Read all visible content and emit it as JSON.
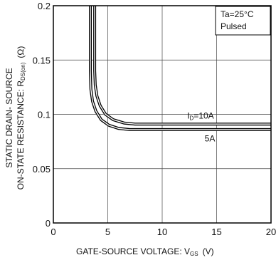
{
  "chart_data": {
    "type": "line",
    "xlabel": "GATE-SOURCE  VOLTAGE: V",
    "xlabel_sub": "GS",
    "xlabel_unit": "(V)",
    "ylabel_line1": "STATIC  DRAIN- SOURCE",
    "ylabel_line2": "ON-STATE  RESISTANCE: R",
    "ylabel_sub": "DS(on)",
    "ylabel_unit": "(Ω)",
    "xlim": [
      0,
      20
    ],
    "ylim": [
      0,
      0.2
    ],
    "x_ticks": [
      "0",
      "5",
      "10",
      "15",
      "20"
    ],
    "y_ticks": [
      "0",
      "0.05",
      "0.1",
      "0.15",
      "0.2"
    ],
    "grid": true,
    "legend_box": {
      "line1": "Ta=25°C",
      "line2": "Pulsed",
      "placement": "top-right"
    },
    "series": [
      {
        "name": "ID=10A",
        "label_main": "I",
        "label_sub": "D",
        "label_rest": "=10A",
        "x": [
          3.8,
          3.8,
          3.85,
          4.0,
          4.3,
          4.8,
          5.5,
          6.5,
          7.5,
          10,
          15,
          20
        ],
        "y": [
          0.2,
          0.14,
          0.127,
          0.117,
          0.108,
          0.1,
          0.095,
          0.092,
          0.091,
          0.091,
          0.091,
          0.091
        ]
      },
      {
        "name": "5A",
        "label_main": "5A",
        "label_sub": "",
        "label_rest": "",
        "x": [
          3.4,
          3.4,
          3.45,
          3.6,
          3.9,
          4.4,
          5.1,
          6.0,
          7.0,
          10,
          15,
          20
        ],
        "y": [
          0.2,
          0.14,
          0.123,
          0.112,
          0.103,
          0.095,
          0.09,
          0.087,
          0.086,
          0.086,
          0.086,
          0.086
        ]
      }
    ]
  }
}
